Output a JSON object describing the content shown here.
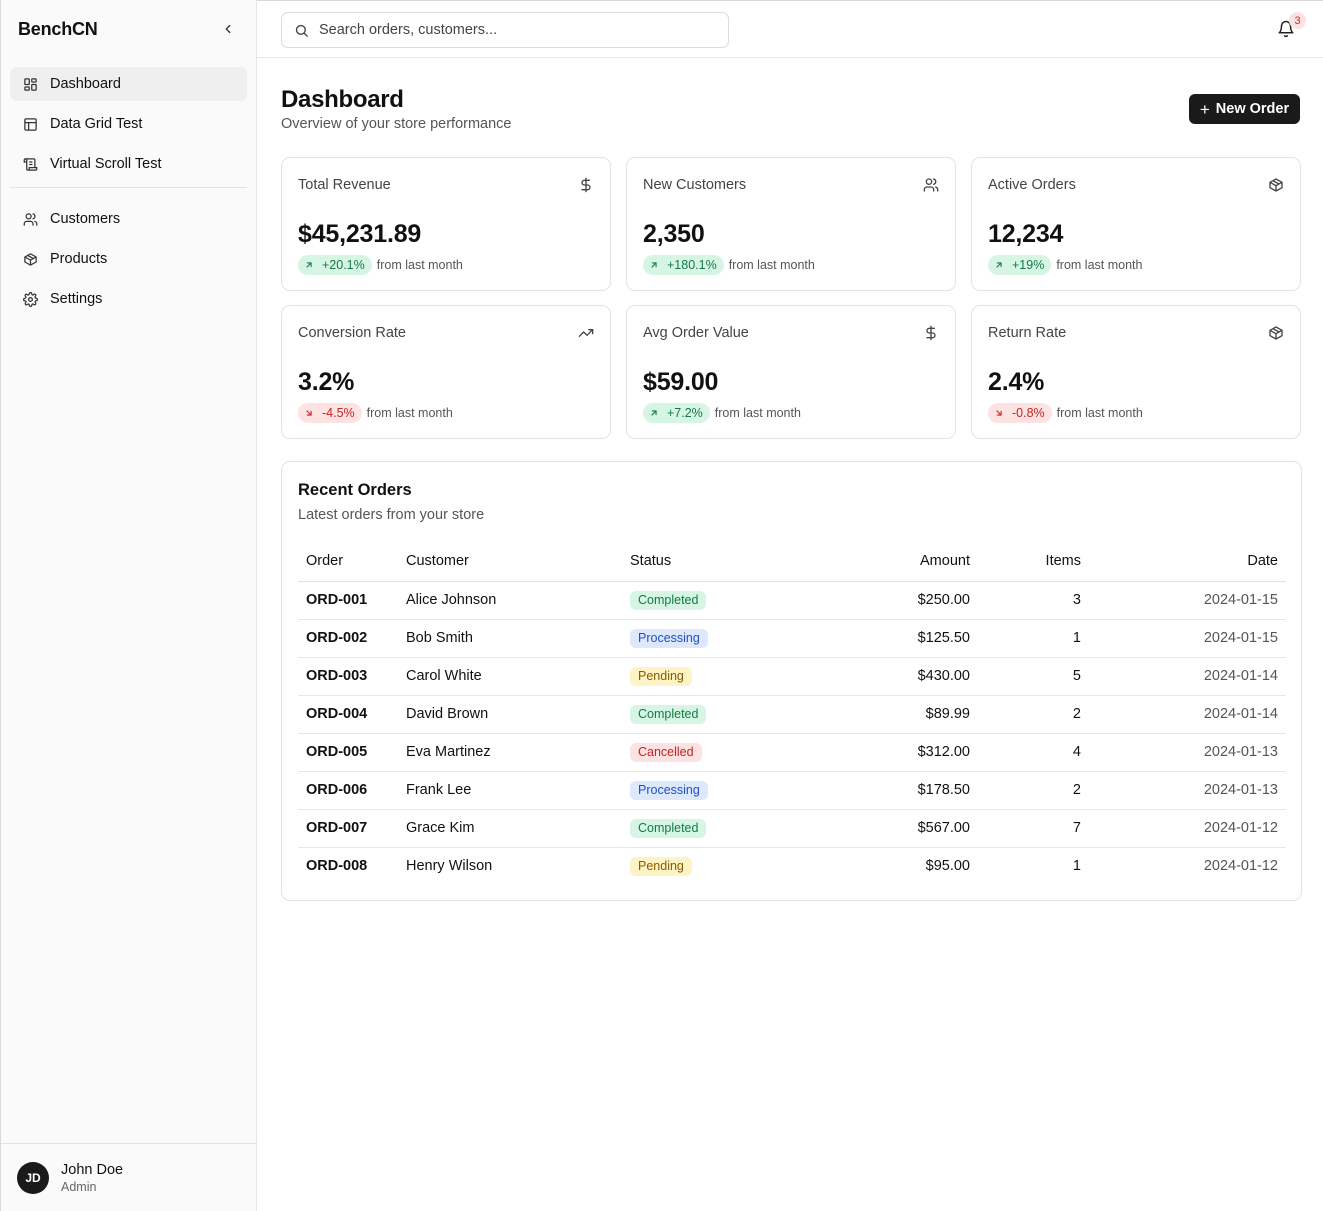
{
  "app": {
    "name": "BenchCN"
  },
  "sidebar": {
    "items": [
      {
        "label": "Dashboard",
        "icon": "dashboard-icon"
      },
      {
        "label": "Data Grid Test",
        "icon": "table-icon"
      },
      {
        "label": "Virtual Scroll Test",
        "icon": "scroll-list-icon"
      },
      {
        "label": "Customers",
        "icon": "users-icon"
      },
      {
        "label": "Products",
        "icon": "box-icon"
      },
      {
        "label": "Settings",
        "icon": "gear-icon"
      }
    ],
    "active": "Dashboard"
  },
  "user": {
    "initials": "JD",
    "name": "John Doe",
    "role": "Admin"
  },
  "topbar": {
    "search_placeholder": "Search orders, customers...",
    "notification_count": "3"
  },
  "page": {
    "title": "Dashboard",
    "subtitle": "Overview of your store performance",
    "new_order_label": "New Order"
  },
  "stats": [
    {
      "label": "Total Revenue",
      "value": "$45,231.89",
      "change": "+20.1%",
      "direction": "up",
      "note": "from last month",
      "icon": "dollar-icon"
    },
    {
      "label": "New Customers",
      "value": "2,350",
      "change": "+180.1%",
      "direction": "up",
      "note": "from last month",
      "icon": "users-icon"
    },
    {
      "label": "Active Orders",
      "value": "12,234",
      "change": "+19%",
      "direction": "up",
      "note": "from last month",
      "icon": "box-icon"
    },
    {
      "label": "Conversion Rate",
      "value": "3.2%",
      "change": "-4.5%",
      "direction": "down",
      "note": "from last month",
      "icon": "trending-up-icon"
    },
    {
      "label": "Avg Order Value",
      "value": "$59.00",
      "change": "+7.2%",
      "direction": "up",
      "note": "from last month",
      "icon": "dollar-icon"
    },
    {
      "label": "Return Rate",
      "value": "2.4%",
      "change": "-0.8%",
      "direction": "down",
      "note": "from last month",
      "icon": "box-icon"
    }
  ],
  "orders": {
    "title": "Recent Orders",
    "subtitle": "Latest orders from your store",
    "columns": [
      "Order",
      "Customer",
      "Status",
      "Amount",
      "Items",
      "Date"
    ],
    "rows": [
      {
        "order": "ORD-001",
        "customer": "Alice Johnson",
        "status": "Completed",
        "amount": "$250.00",
        "items": "3",
        "date": "2024-01-15"
      },
      {
        "order": "ORD-002",
        "customer": "Bob Smith",
        "status": "Processing",
        "amount": "$125.50",
        "items": "1",
        "date": "2024-01-15"
      },
      {
        "order": "ORD-003",
        "customer": "Carol White",
        "status": "Pending",
        "amount": "$430.00",
        "items": "5",
        "date": "2024-01-14"
      },
      {
        "order": "ORD-004",
        "customer": "David Brown",
        "status": "Completed",
        "amount": "$89.99",
        "items": "2",
        "date": "2024-01-14"
      },
      {
        "order": "ORD-005",
        "customer": "Eva Martinez",
        "status": "Cancelled",
        "amount": "$312.00",
        "items": "4",
        "date": "2024-01-13"
      },
      {
        "order": "ORD-006",
        "customer": "Frank Lee",
        "status": "Processing",
        "amount": "$178.50",
        "items": "2",
        "date": "2024-01-13"
      },
      {
        "order": "ORD-007",
        "customer": "Grace Kim",
        "status": "Completed",
        "amount": "$567.00",
        "items": "7",
        "date": "2024-01-12"
      },
      {
        "order": "ORD-008",
        "customer": "Henry Wilson",
        "status": "Pending",
        "amount": "$95.00",
        "items": "1",
        "date": "2024-01-12"
      }
    ]
  },
  "colors": {
    "primary": "#1a1a1a",
    "positive_bg": "#d6f5e4",
    "positive_fg": "#137a43",
    "negative_bg": "#fde2e2",
    "negative_fg": "#c42323",
    "processing_bg": "#dde8fd",
    "processing_fg": "#1f4fc7",
    "pending_bg": "#fdf3c4",
    "pending_fg": "#8a5a00"
  }
}
